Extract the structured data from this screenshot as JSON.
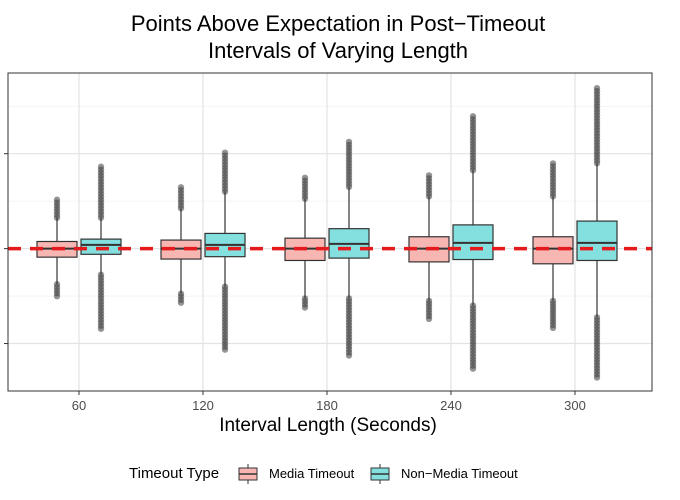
{
  "chart_data": {
    "type": "boxplot",
    "title_line1": "Points Above Expectation in Post−Timeout",
    "title_line2": "Intervals of Varying Length",
    "xlabel": "Interval Length (Seconds)",
    "ylabel": "",
    "categories": [
      "60",
      "120",
      "180",
      "240",
      "300"
    ],
    "ylim": [
      -3.0,
      3.7
    ],
    "y_ticks": [
      -2,
      0,
      2
    ],
    "reference_line": {
      "y": 0,
      "color": "#e41a1c",
      "style": "dashed"
    },
    "grid": true,
    "legend": {
      "title": "Timeout Type",
      "position": "bottom"
    },
    "series": [
      {
        "name": "Media Timeout",
        "color": "#f8b6b2",
        "boxes": [
          {
            "whisker_low": -0.75,
            "q1": -0.18,
            "median": 0.0,
            "q3": 0.15,
            "whisker_high": 0.65,
            "outliers": [
              1.05,
              -1.05
            ]
          },
          {
            "whisker_low": -0.95,
            "q1": -0.22,
            "median": 0.0,
            "q3": 0.18,
            "whisker_high": 0.85,
            "outliers": [
              1.3,
              -1.15
            ]
          },
          {
            "whisker_low": -1.05,
            "q1": -0.25,
            "median": 0.0,
            "q3": 0.22,
            "whisker_high": 1.05,
            "outliers": [
              1.55,
              -1.3
            ]
          },
          {
            "whisker_low": -1.1,
            "q1": -0.28,
            "median": 0.0,
            "q3": 0.25,
            "whisker_high": 1.1,
            "outliers": [
              1.55,
              -1.5
            ]
          },
          {
            "whisker_low": -1.1,
            "q1": -0.32,
            "median": 0.0,
            "q3": 0.25,
            "whisker_high": 1.1,
            "outliers": [
              1.8,
              -1.7
            ]
          }
        ]
      },
      {
        "name": "Non−Media Timeout",
        "color": "#84e0df",
        "boxes": [
          {
            "whisker_low": -0.55,
            "q1": -0.12,
            "median": 0.08,
            "q3": 0.2,
            "whisker_high": 0.65,
            "outliers": [
              1.75,
              -1.75
            ]
          },
          {
            "whisker_low": -0.8,
            "q1": -0.17,
            "median": 0.08,
            "q3": 0.32,
            "whisker_high": 1.2,
            "outliers": [
              2.05,
              -2.15
            ]
          },
          {
            "whisker_low": -1.05,
            "q1": -0.2,
            "median": 0.1,
            "q3": 0.42,
            "whisker_high": 1.3,
            "outliers": [
              2.3,
              -2.3
            ]
          },
          {
            "whisker_low": -1.2,
            "q1": -0.23,
            "median": 0.12,
            "q3": 0.5,
            "whisker_high": 1.65,
            "outliers": [
              2.85,
              -2.55
            ]
          },
          {
            "whisker_low": -1.45,
            "q1": -0.25,
            "median": 0.12,
            "q3": 0.58,
            "whisker_high": 1.8,
            "outliers": [
              3.4,
              -2.75
            ]
          }
        ]
      }
    ]
  }
}
